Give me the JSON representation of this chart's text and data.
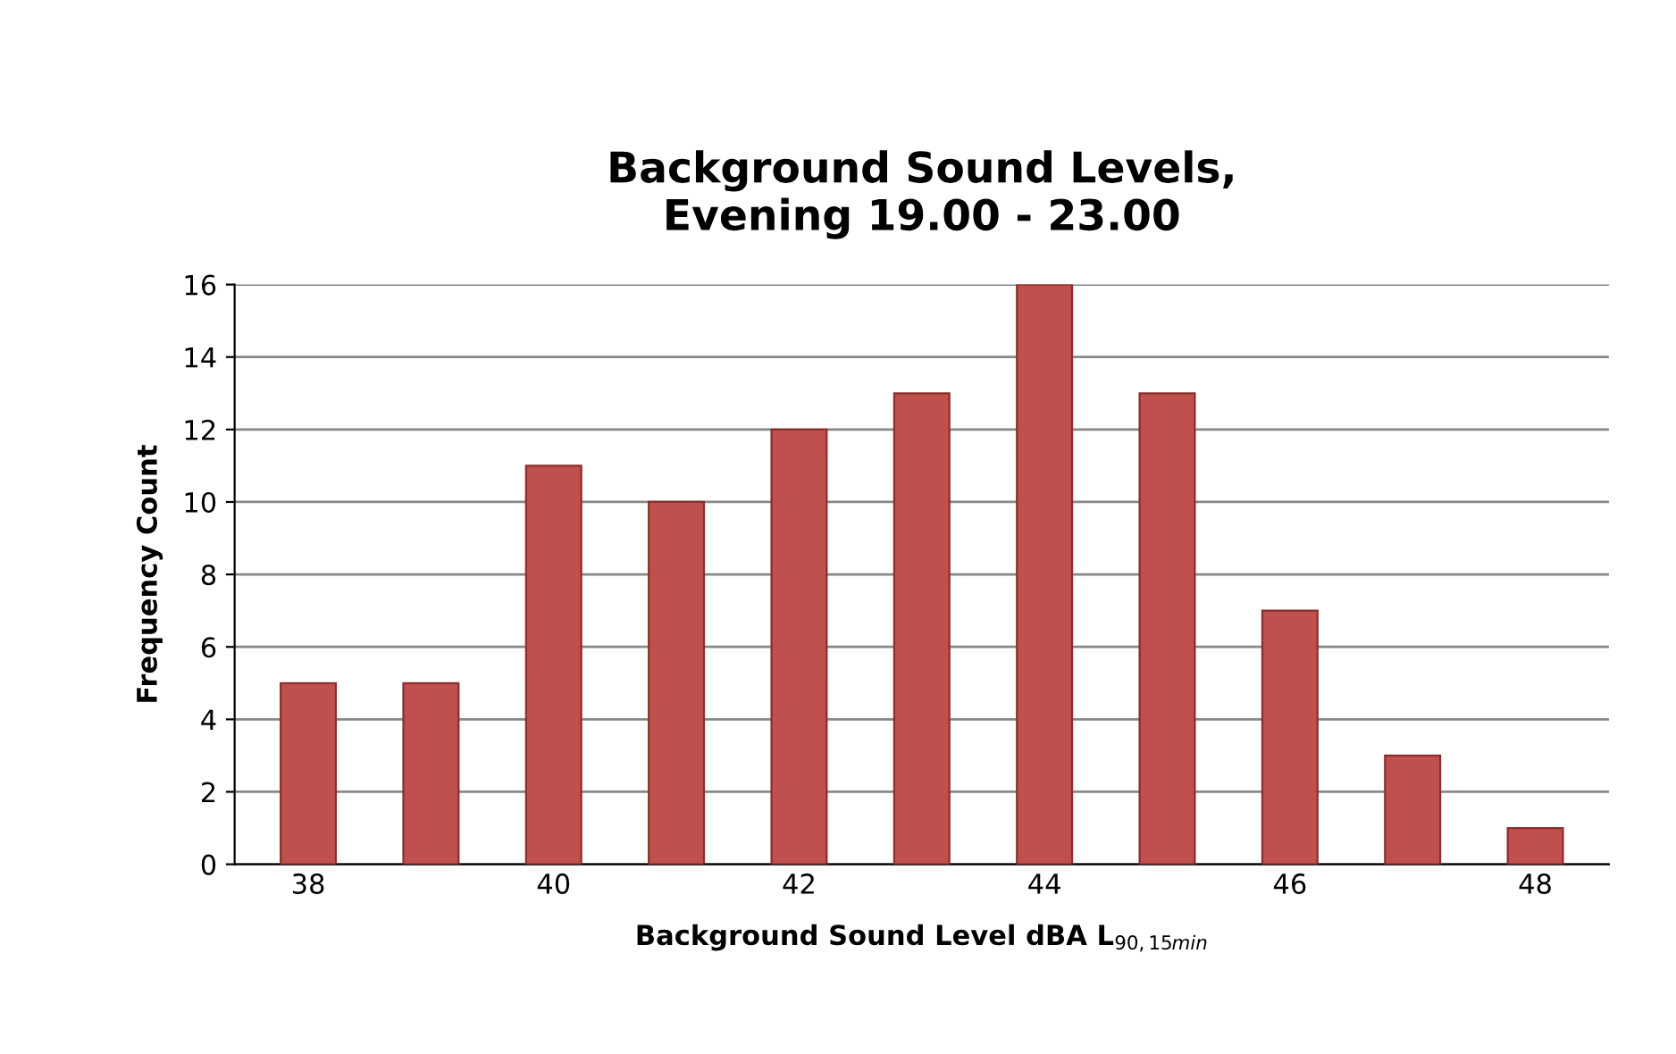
{
  "chart_data": {
    "type": "bar",
    "title": "Background Sound Levels,\nEvening 19.00 - 23.00",
    "xlabel": "Background Sound Level dBA L$_{90,15min}$",
    "ylabel": "Frequency Count",
    "categories": [
      "38",
      null,
      "40",
      null,
      "42",
      null,
      "44",
      null,
      "46",
      null,
      "48"
    ],
    "values": [
      5,
      5,
      11,
      10,
      12,
      13,
      16,
      13,
      7,
      3,
      1
    ],
    "color": "#c0504d",
    "ylim": [
      0,
      16
    ],
    "yticks": [
      0,
      2,
      4,
      6,
      8,
      10,
      12,
      14,
      16
    ],
    "grid": "y"
  }
}
